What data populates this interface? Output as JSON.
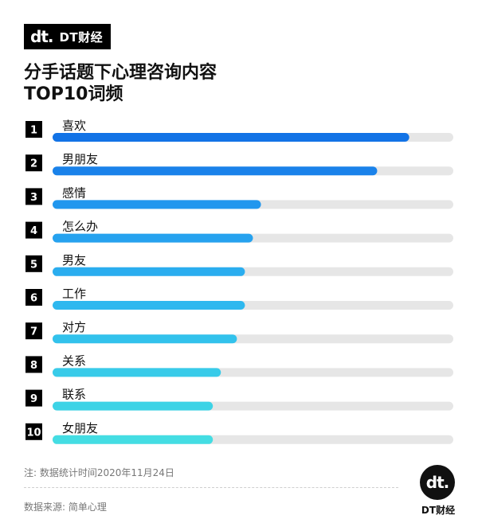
{
  "brand": {
    "mark": "dt.",
    "name": "DT财经"
  },
  "title_line1": "分手话题下心理咨询内容",
  "title_line2": "TOP10词频",
  "chart_data": {
    "type": "bar",
    "orientation": "horizontal",
    "ranks": [
      "1",
      "2",
      "3",
      "4",
      "5",
      "6",
      "7",
      "8",
      "9",
      "10"
    ],
    "categories": [
      "喜欢",
      "男朋友",
      "感情",
      "怎么办",
      "男友",
      "工作",
      "对方",
      "关系",
      "联系",
      "女朋友"
    ],
    "values": [
      0.89,
      0.81,
      0.52,
      0.5,
      0.48,
      0.48,
      0.46,
      0.42,
      0.4,
      0.4
    ],
    "xlim": [
      0,
      1
    ],
    "colors": [
      "#1273e6",
      "#1a82ea",
      "#2197ee",
      "#26a2ef",
      "#2aadef",
      "#2eb8ef",
      "#32c2ec",
      "#38cbe9",
      "#3dd3e6",
      "#44dde3"
    ],
    "track_color": "#e6e6e6"
  },
  "footnote": "注: 数据统计时间2020年11月24日",
  "source": "数据来源: 简单心理",
  "logo": {
    "mark": "dt.",
    "name": "DT财经"
  }
}
